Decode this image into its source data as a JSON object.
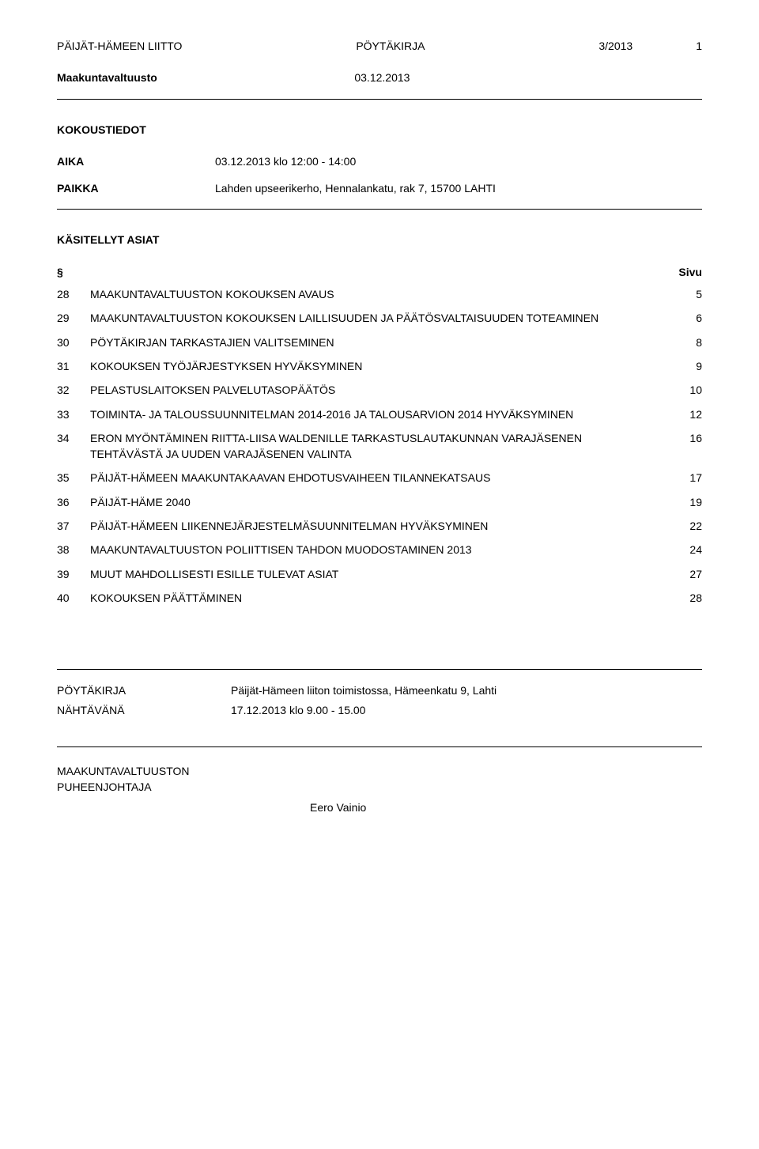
{
  "header": {
    "left": "PÄIJÄT-HÄMEEN LIITTO",
    "center": "PÖYTÄKIRJA",
    "right_meeting_num": "3/2013",
    "page_num": "1",
    "body": "Maakuntavaltuusto",
    "date": "03.12.2013"
  },
  "kokoustiedot": {
    "title": "KOKOUSTIEDOT",
    "aika_label": "AIKA",
    "aika_value": "03.12.2013 klo 12:00 - 14:00",
    "paikka_label": "PAIKKA",
    "paikka_value": "Lahden upseerikerho, Hennalankatu, rak 7, 15700 LAHTI"
  },
  "asiat": {
    "title": "KÄSITELLYT ASIAT",
    "section_symbol": "§",
    "sivu_label": "Sivu",
    "items": [
      {
        "num": "28",
        "title": "MAAKUNTAVALTUUSTON KOKOUKSEN AVAUS",
        "page": "5"
      },
      {
        "num": "29",
        "title": "MAAKUNTAVALTUUSTON KOKOUKSEN LAILLISUUDEN JA PÄÄTÖSVALTAISUUDEN TOTEAMINEN",
        "page": "6"
      },
      {
        "num": "30",
        "title": "PÖYTÄKIRJAN TARKASTAJIEN VALITSEMINEN",
        "page": "8"
      },
      {
        "num": "31",
        "title": "KOKOUKSEN TYÖJÄRJESTYKSEN HYVÄKSYMINEN",
        "page": "9"
      },
      {
        "num": "32",
        "title": "PELASTUSLAITOKSEN PALVELUTASOPÄÄTÖS",
        "page": "10"
      },
      {
        "num": "33",
        "title": "TOIMINTA- JA TALOUSSUUNNITELMAN 2014-2016 JA TALOUSARVION 2014 HYVÄKSYMINEN",
        "page": "12"
      },
      {
        "num": "34",
        "title": "ERON MYÖNTÄMINEN RIITTA-LIISA WALDENILLE TARKASTUSLAUTAKUNNAN VARAJÄSENEN TEHTÄVÄSTÄ JA UUDEN VARAJÄSENEN VALINTA",
        "page": "16"
      },
      {
        "num": "35",
        "title": "PÄIJÄT-HÄMEEN MAAKUNTAKAAVAN EHDOTUSVAIHEEN TILANNEKATSAUS",
        "page": "17"
      },
      {
        "num": "36",
        "title": "PÄIJÄT-HÄME 2040",
        "page": "19"
      },
      {
        "num": "37",
        "title": "PÄIJÄT-HÄMEEN LIIKENNEJÄRJESTELMÄSUUNNITELMAN HYVÄKSYMINEN",
        "page": "22"
      },
      {
        "num": "38",
        "title": "MAAKUNTAVALTUUSTON POLIITTISEN TAHDON MUODOSTAMINEN 2013",
        "page": "24"
      },
      {
        "num": "39",
        "title": "MUUT MAHDOLLISESTI ESILLE TULEVAT ASIAT",
        "page": "27"
      },
      {
        "num": "40",
        "title": "KOKOUKSEN PÄÄTTÄMINEN",
        "page": "28"
      }
    ]
  },
  "footer": {
    "poytakirja_label": "PÖYTÄKIRJA",
    "poytakirja_value": "Päijät-Hämeen liiton toimistossa, Hämeenkatu 9, Lahti",
    "nahtavana_label": "NÄHTÄVÄNÄ",
    "nahtavana_value": "17.12.2013 klo 9.00 - 15.00",
    "signer_title1": "MAAKUNTAVALTUUSTON",
    "signer_title2": "PUHEENJOHTAJA",
    "signer_name": "Eero Vainio"
  }
}
